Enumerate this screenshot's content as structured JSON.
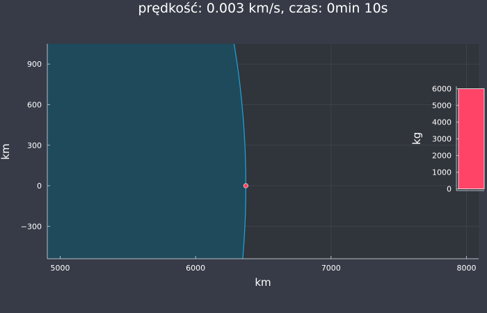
{
  "theme": {
    "background": "#363b47",
    "plot_background": "#30343b",
    "grid": "#3d424c",
    "axis": "#b8bcc4",
    "text": "#ffffff",
    "planet_fill": "#1e4a5c",
    "planet_edge": "#1f9fd0",
    "marker": "#ff4060",
    "bar": "#ff4468"
  },
  "chart_data": [
    {
      "type": "scatter",
      "title": "prędkość: 0.003 km/s, czas: 0min 10s",
      "xlabel": "km",
      "ylabel": "km",
      "xlim": [
        4905,
        8090
      ],
      "ylim": [
        -540,
        1050
      ],
      "xticks": [
        5000,
        6000,
        7000,
        8000
      ],
      "xtick_labels": [
        "5000",
        "6000",
        "7000",
        "8000"
      ],
      "yticks": [
        -300,
        0,
        300,
        600,
        900
      ],
      "ytick_labels": [
        "−300",
        "0",
        "300",
        "600",
        "900"
      ],
      "grid": true,
      "planet_radius": 6371,
      "points": [
        {
          "x": 6371,
          "y": 0
        }
      ]
    },
    {
      "type": "bar",
      "xlabel": "",
      "ylabel": "kg",
      "ylim": [
        -100,
        6150
      ],
      "yticks": [
        0,
        1000,
        2000,
        3000,
        4000,
        5000,
        6000
      ],
      "ytick_labels": [
        "0",
        "1000",
        "2000",
        "3000",
        "4000",
        "5000",
        "6000"
      ],
      "categories": [
        ""
      ],
      "values": [
        6000
      ]
    }
  ]
}
